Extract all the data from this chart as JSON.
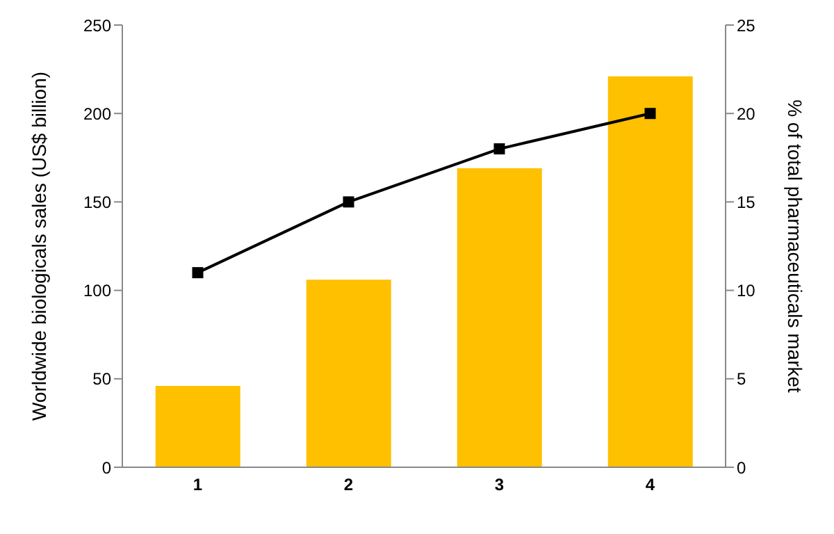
{
  "chart_data": {
    "type": "bar",
    "ylabel": "Worldwide biologicals sales (US$ billion)",
    "y2label": "% of total pharmaceuticals market",
    "categories": [
      "1",
      "2",
      "3",
      "4"
    ],
    "series": [
      {
        "color": "#ffc000",
        "values": [
          46,
          106,
          169,
          221
        ]
      },
      {
        "type": "line",
        "axis": "y2",
        "color": "#000000",
        "marker": "square",
        "line_style": "solid",
        "values": [
          11,
          15,
          18,
          20
        ]
      }
    ],
    "ylim": [
      0,
      250
    ],
    "yticks": [
      0,
      50,
      100,
      150,
      200,
      250
    ],
    "y2lim": [
      0,
      25
    ],
    "y2ticks": [
      0,
      5,
      10,
      15,
      20,
      25
    ]
  }
}
